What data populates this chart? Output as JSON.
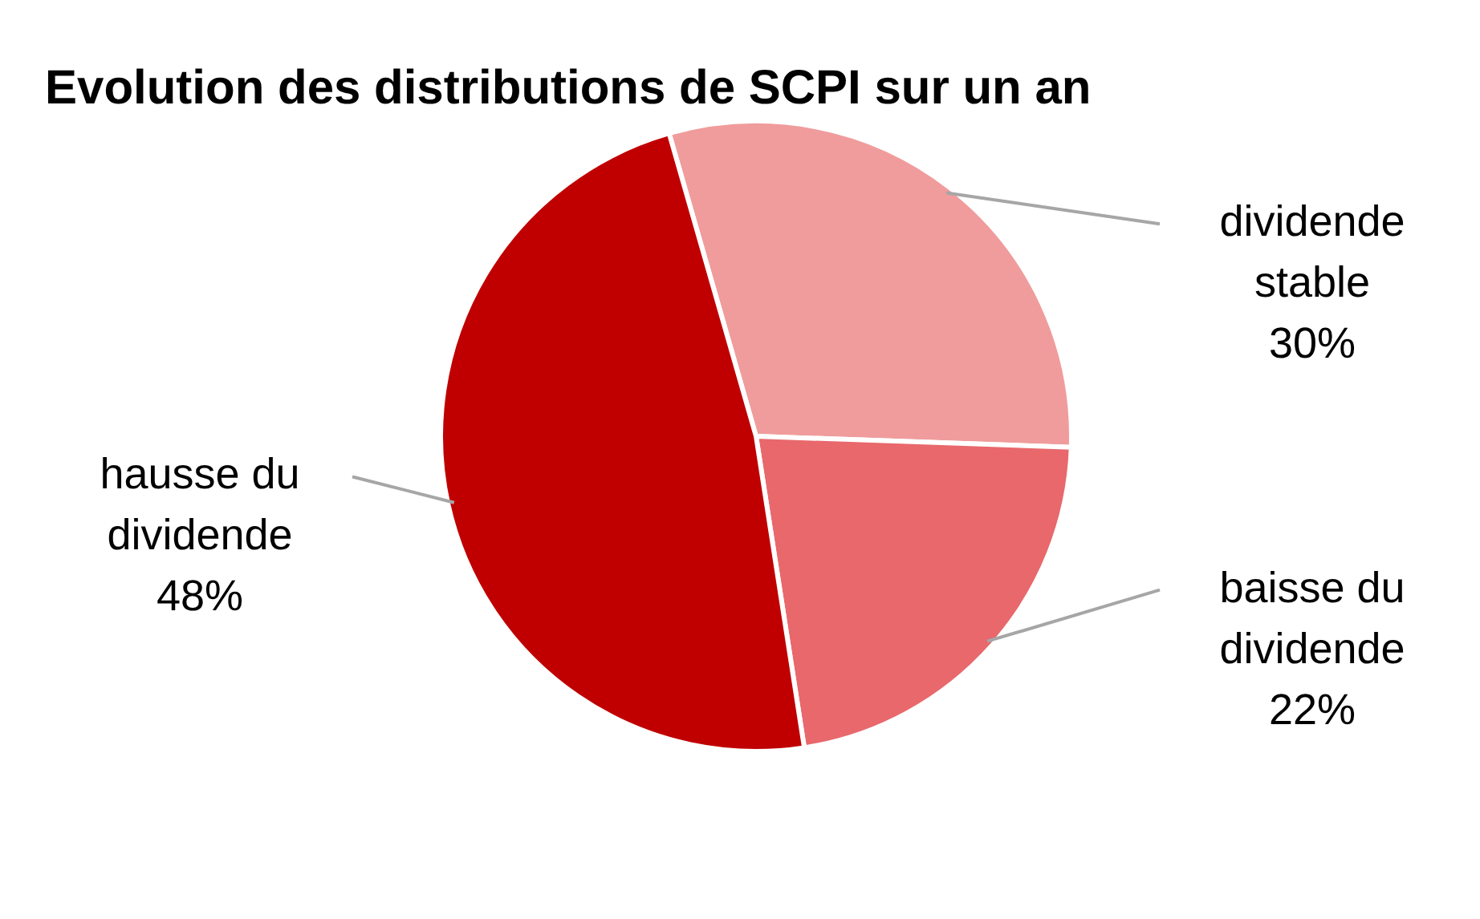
{
  "chart_data": {
    "type": "pie",
    "title": "Evolution des distributions de SCPI sur un an",
    "categories": [
      "dividende stable",
      "baisse du dividende",
      "hausse du dividende"
    ],
    "values": [
      30,
      22,
      48
    ],
    "colors": [
      "#f09c9c",
      "#e8686c",
      "#c00000"
    ],
    "value_labels": [
      "30%",
      "22%",
      "48%"
    ],
    "legend": false
  }
}
